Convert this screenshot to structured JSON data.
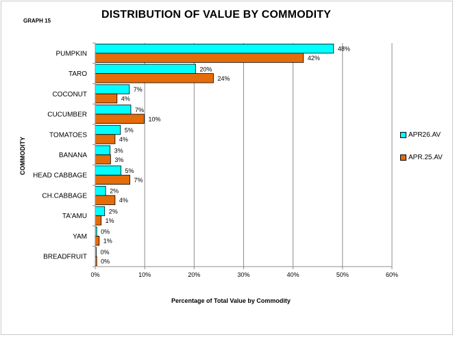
{
  "graph_tag": "GRAPH 15",
  "title": "DISTRIBUTION OF VALUE BY COMMODITY",
  "colors": {
    "apr26": "#00ffff",
    "apr25": "#e46c0a"
  },
  "chart_data": {
    "type": "bar",
    "orientation": "horizontal",
    "title": "DISTRIBUTION OF VALUE BY COMMODITY",
    "xlabel": "Percentage of Total Value by Commodity",
    "ylabel": "COMMODITY",
    "xlim": [
      0,
      60
    ],
    "x_ticks": [
      "0%",
      "10%",
      "20%",
      "30%",
      "40%",
      "50%",
      "60%"
    ],
    "grid": true,
    "legend_position": "right",
    "categories": [
      "PUMPKIN",
      "TARO",
      "COCONUT",
      "CUCUMBER",
      "TOMATOES",
      "BANANA",
      "HEAD CABBAGE",
      "CH.CABBAGE",
      "TA'AMU",
      "YAM",
      "BREADFRUIT"
    ],
    "series": [
      {
        "name": "APR26.AV",
        "color": "#00ffff",
        "values": [
          48.2,
          20.3,
          6.9,
          7.2,
          5.1,
          3.0,
          5.2,
          2.1,
          1.9,
          0.3,
          0.2
        ],
        "labels": [
          "48%",
          "20%",
          "7%",
          "7%",
          "5%",
          "3%",
          "5%",
          "2%",
          "2%",
          "0%",
          "0%"
        ]
      },
      {
        "name": "APR.25.AV",
        "color": "#e46c0a",
        "values": [
          42.1,
          23.9,
          4.4,
          9.9,
          4.0,
          3.1,
          7.0,
          4.0,
          1.2,
          0.8,
          0.3
        ],
        "labels": [
          "42%",
          "24%",
          "4%",
          "10%",
          "4%",
          "3%",
          "7%",
          "4%",
          "1%",
          "1%",
          "0%"
        ]
      }
    ]
  }
}
